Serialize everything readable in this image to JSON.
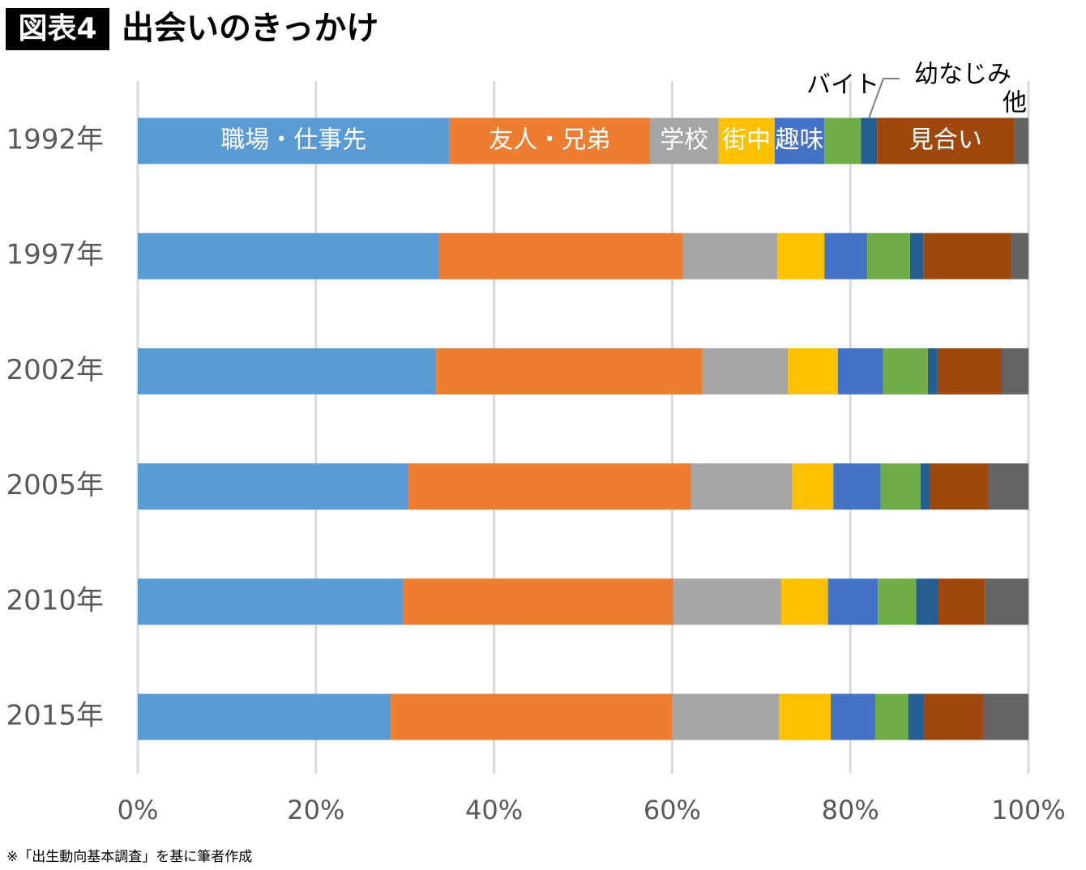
{
  "figure_label": "図表4",
  "note": "※「出生動向基本調査」を基に筆者作成",
  "chart_data": {
    "type": "bar",
    "orientation": "horizontal",
    "stacked": true,
    "title": "出会いのきっかけ",
    "categories": [
      "1992年",
      "1997年",
      "2002年",
      "2005年",
      "2010年",
      "2015年"
    ],
    "series": [
      {
        "name": "職場・仕事先",
        "color": "#5b9bd5",
        "values": [
          35.0,
          33.8,
          33.5,
          30.4,
          29.8,
          28.4
        ]
      },
      {
        "name": "友人・兄弟",
        "color": "#ed7d31",
        "values": [
          22.5,
          27.4,
          29.9,
          31.7,
          30.3,
          31.6
        ]
      },
      {
        "name": "学校",
        "color": "#a5a5a5",
        "values": [
          7.7,
          10.6,
          9.6,
          11.4,
          12.1,
          12.0
        ]
      },
      {
        "name": "街中",
        "color": "#ffc000",
        "values": [
          6.3,
          5.3,
          5.6,
          4.6,
          5.3,
          5.8
        ]
      },
      {
        "name": "趣味",
        "color": "#4472c4",
        "values": [
          5.6,
          4.8,
          5.1,
          5.3,
          5.6,
          5.0
        ]
      },
      {
        "name": "バイト",
        "color": "#70ad47",
        "values": [
          4.1,
          4.8,
          5.0,
          4.5,
          4.3,
          3.7
        ]
      },
      {
        "name": "幼なじみ",
        "color": "#255e91",
        "values": [
          1.8,
          1.5,
          1.1,
          1.0,
          2.5,
          1.8
        ]
      },
      {
        "name": "見合い",
        "color": "#9e480e",
        "values": [
          15.4,
          9.9,
          7.2,
          6.6,
          5.2,
          6.6
        ]
      },
      {
        "name": "他",
        "color": "#636363",
        "values": [
          1.6,
          1.9,
          3.0,
          4.5,
          4.9,
          5.1
        ]
      }
    ],
    "xlim": [
      0,
      100
    ],
    "xticks": [
      {
        "value": 0,
        "label": "0%"
      },
      {
        "value": 20,
        "label": "20%"
      },
      {
        "value": 40,
        "label": "40%"
      },
      {
        "value": 60,
        "label": "60%"
      },
      {
        "value": 80,
        "label": "80%"
      },
      {
        "value": 100,
        "label": "100%"
      }
    ],
    "grid": true
  }
}
